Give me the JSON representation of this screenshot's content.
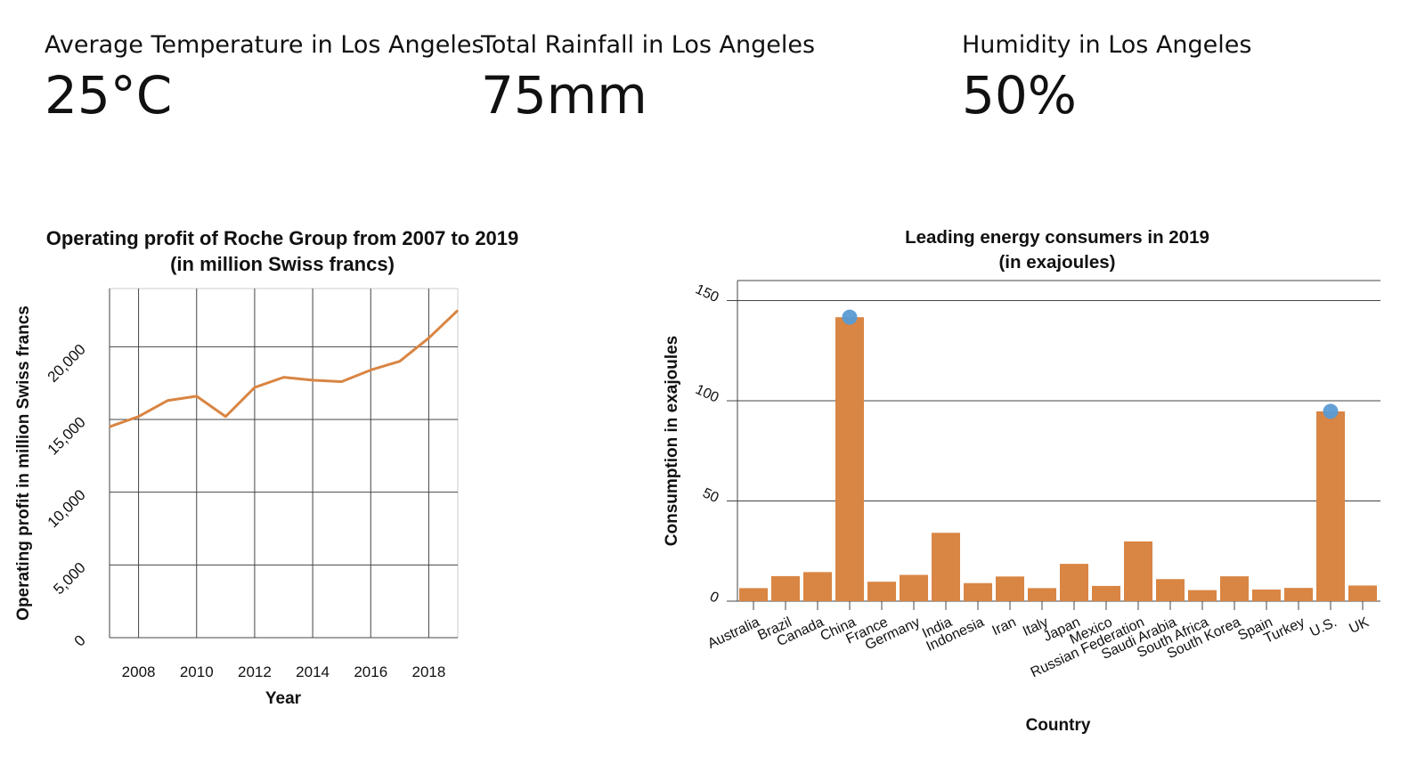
{
  "kpis": [
    {
      "label": "Average Temperature in Los Angeles",
      "value": "25°C"
    },
    {
      "label": "Total Rainfall in Los Angeles",
      "value": "75mm"
    },
    {
      "label": "Humidity in Los Angeles",
      "value": "50%"
    }
  ],
  "colors": {
    "bar": "#d98543",
    "line": "#d98543",
    "highlight": "#5a9bd4",
    "grid": "#444444"
  },
  "chart_data": [
    {
      "type": "line",
      "title": "Operating profit of Roche Group from 2007 to 2019",
      "subtitle": "(in million Swiss francs)",
      "xlabel": "Year",
      "ylabel": "Operating profit in million Swiss francs",
      "x": [
        2007,
        2008,
        2009,
        2010,
        2011,
        2012,
        2013,
        2014,
        2015,
        2016,
        2017,
        2018,
        2019
      ],
      "series": [
        {
          "values": [
            14500,
            15200,
            16300,
            16600,
            15200,
            17200,
            17900,
            17700,
            17600,
            18400,
            19000,
            20600,
            22500
          ]
        }
      ],
      "xticks": [
        "2008",
        "2010",
        "2012",
        "2014",
        "2016",
        "2018"
      ],
      "yticks": [
        "0",
        "5,000",
        "10,000",
        "15,000",
        "20,000"
      ],
      "xlim": [
        2007,
        2019
      ],
      "ylim": [
        0,
        24000
      ],
      "grid": true
    },
    {
      "type": "bar",
      "title": "Leading energy consumers in 2019",
      "subtitle": "(in exajoules)",
      "xlabel": "Country",
      "ylabel": "Consumption in exajoules",
      "categories": [
        "Australia",
        "Brazil",
        "Canada",
        "China",
        "France",
        "Germany",
        "India",
        "Indonesia",
        "Iran",
        "Italy",
        "Japan",
        "Mexico",
        "Russian Federation",
        "Saudi Arabia",
        "South Africa",
        "South Korea",
        "Spain",
        "Turkey",
        "U.S.",
        "UK"
      ],
      "values": [
        6.5,
        12.5,
        14.5,
        141.7,
        9.7,
        13.1,
        34.1,
        9.0,
        12.3,
        6.5,
        18.6,
        7.6,
        29.8,
        11.0,
        5.5,
        12.4,
        5.8,
        6.6,
        94.7,
        7.8
      ],
      "highlighted": [
        "China",
        "U.S."
      ],
      "yticks": [
        "0",
        "50",
        "100",
        "150"
      ],
      "ylim": [
        0,
        160
      ],
      "grid": true
    }
  ]
}
